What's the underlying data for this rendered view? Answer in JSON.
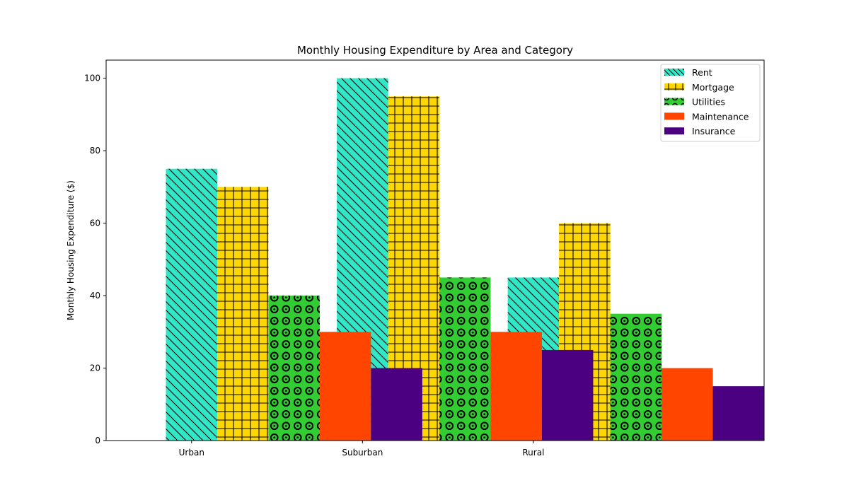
{
  "chart_data": {
    "type": "bar",
    "title": "Monthly Housing Expenditure by Area and Category",
    "xlabel": "",
    "ylabel": "Monthly Housing Expenditure ($)",
    "categories": [
      "Urban",
      "Suburban",
      "Rural"
    ],
    "ylim": [
      0,
      105
    ],
    "yticks": [
      0,
      20,
      40,
      60,
      80,
      100
    ],
    "legend_position": "top-right",
    "grid": false,
    "series": [
      {
        "name": "Rent",
        "values": [
          75,
          100,
          45
        ],
        "color": "#2ee8c8",
        "pattern": "diagonal-hatch"
      },
      {
        "name": "Mortgage",
        "values": [
          70,
          95,
          60
        ],
        "color": "#ffd700",
        "pattern": "grid-hatch"
      },
      {
        "name": "Utilities",
        "values": [
          40,
          45,
          35
        ],
        "color": "#32cd32",
        "pattern": "circle-hatch"
      },
      {
        "name": "Maintenance",
        "values": [
          30,
          30,
          20
        ],
        "color": "#ff4500",
        "pattern": "none"
      },
      {
        "name": "Insurance",
        "values": [
          20,
          25,
          15
        ],
        "color": "#4b0082",
        "pattern": "none"
      }
    ]
  }
}
